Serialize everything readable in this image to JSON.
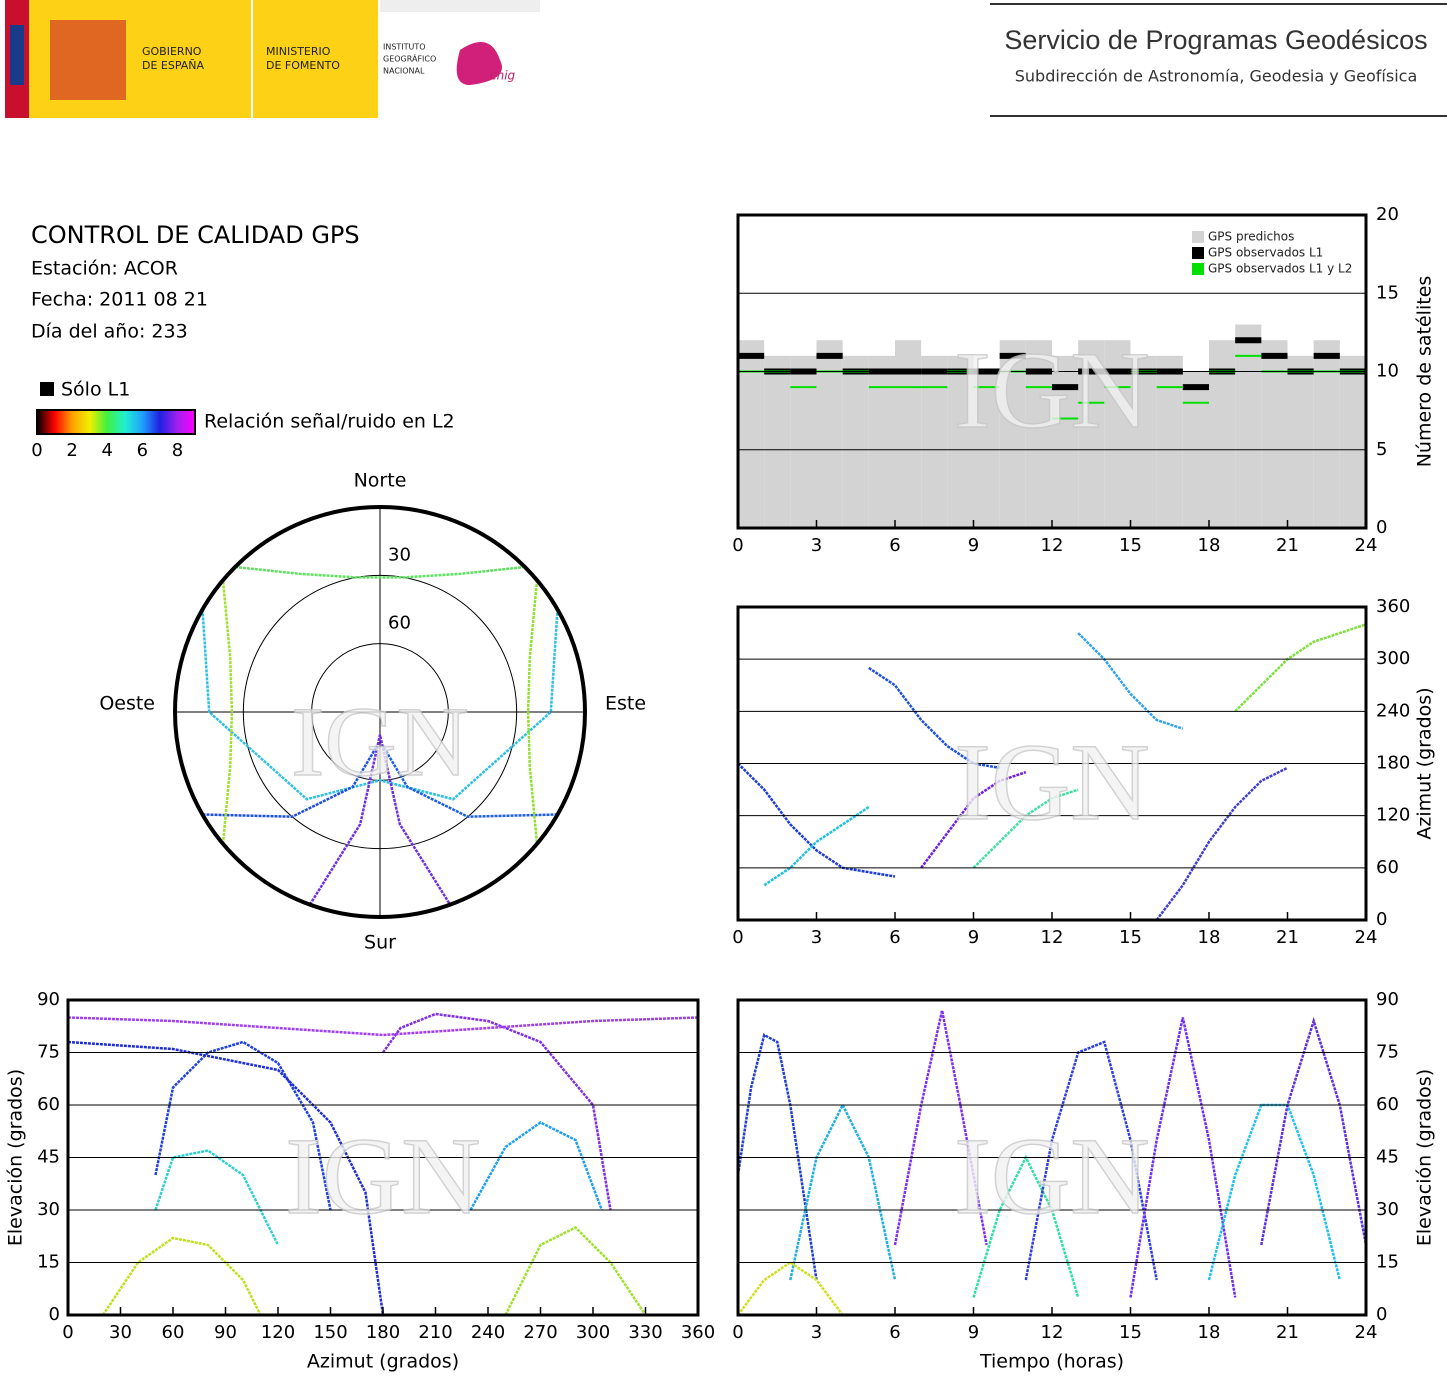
{
  "header": {
    "gov": [
      "GOBIERNO",
      "DE ESPAÑA"
    ],
    "ministry": [
      "MINISTERIO",
      "DE FOMENTO"
    ],
    "institute": [
      "INSTITUTO",
      "GEOGRÁFICO",
      "NACIONAL"
    ],
    "cnig": "cnig",
    "service": "Servicio de Programas Geodésicos",
    "subdirection": "Subdirección de Astronomía, Geodesia y Geofísica"
  },
  "info": {
    "title": "CONTROL DE CALIDAD GPS",
    "station": "Estación: ACOR",
    "date": "Fecha: 2011 08 21",
    "doy": "Día del año: 233",
    "l1_only": "Sólo L1",
    "colorbar": {
      "label": "Relación señal/ruido en L2",
      "lim": [
        0,
        9
      ],
      "ticks": [
        0,
        2,
        4,
        6,
        8
      ],
      "colors": [
        "#000000",
        "#ff0000",
        "#ffa000",
        "#f0f000",
        "#40f040",
        "#20f0d0",
        "#20a0ff",
        "#2020e0",
        "#a020f0",
        "#ff00ff"
      ]
    }
  },
  "watermark": "IGN",
  "chart_data": [
    {
      "type": "step",
      "xlim": [
        0,
        24
      ],
      "xticks": [
        0,
        3,
        6,
        9,
        12,
        15,
        18,
        21,
        24
      ],
      "ylim": [
        0,
        20
      ],
      "yticks": [
        0,
        5,
        10,
        15,
        20
      ],
      "ylabel": "Número de satélites",
      "grid": true,
      "legend": "top-right",
      "x": [
        0,
        1,
        2,
        3,
        4,
        5,
        6,
        7,
        8,
        9,
        10,
        11,
        12,
        13,
        14,
        15,
        16,
        17,
        18,
        19,
        20,
        21,
        22,
        23
      ],
      "series": [
        {
          "name": "GPS predichos",
          "color": "#d3d3d3",
          "values": [
            12,
            11,
            11,
            12,
            11,
            11,
            12,
            11,
            11,
            10,
            12,
            12,
            11,
            12,
            12,
            11,
            11,
            10,
            12,
            13,
            12,
            11,
            12,
            11
          ]
        },
        {
          "name": "GPS observados L1",
          "color": "#000000",
          "values": [
            11,
            10,
            10,
            11,
            10,
            10,
            10,
            10,
            10,
            10,
            11,
            10,
            9,
            10,
            10,
            10,
            10,
            9,
            10,
            12,
            11,
            10,
            11,
            10
          ]
        },
        {
          "name": "GPS observados L1 y L2",
          "color": "#00e000",
          "values": [
            10,
            10,
            9,
            10,
            10,
            9,
            9,
            9,
            10,
            9,
            10,
            9,
            7,
            8,
            9,
            10,
            9,
            8,
            10,
            11,
            10,
            10,
            10,
            10
          ]
        }
      ]
    },
    {
      "type": "line",
      "xlim": [
        0,
        24
      ],
      "xticks": [
        0,
        3,
        6,
        9,
        12,
        15,
        18,
        21,
        24
      ],
      "ylim": [
        0,
        360
      ],
      "yticks": [
        0,
        60,
        120,
        180,
        240,
        300,
        360
      ],
      "ylabel": "Azimut (grados)",
      "grid": true,
      "series": [
        {
          "color": "#1e3cd8",
          "x": [
            0,
            1,
            2,
            3,
            4,
            5,
            6
          ],
          "values": [
            180,
            150,
            110,
            80,
            60,
            55,
            50
          ]
        },
        {
          "color": "#20c0e0",
          "x": [
            1,
            2,
            3,
            4,
            5
          ],
          "values": [
            40,
            60,
            90,
            110,
            130
          ]
        },
        {
          "color": "#2050e0",
          "x": [
            5,
            6,
            7,
            8,
            9,
            10
          ],
          "values": [
            290,
            270,
            230,
            200,
            180,
            175
          ]
        },
        {
          "color": "#40e0a0",
          "x": [
            9,
            10,
            11,
            12,
            13
          ],
          "values": [
            60,
            90,
            120,
            140,
            150
          ]
        },
        {
          "color": "#30a0f0",
          "x": [
            13,
            14,
            15,
            16,
            17
          ],
          "values": [
            330,
            300,
            260,
            230,
            220
          ]
        },
        {
          "color": "#4040d0",
          "x": [
            16,
            17,
            18,
            19,
            20,
            21
          ],
          "values": [
            0,
            40,
            90,
            130,
            160,
            175
          ]
        },
        {
          "color": "#80e040",
          "x": [
            19,
            20,
            21,
            22,
            23,
            24
          ],
          "values": [
            240,
            270,
            300,
            320,
            330,
            340
          ]
        },
        {
          "color": "#7020e0",
          "x": [
            7,
            8,
            9,
            10,
            11
          ],
          "values": [
            60,
            100,
            140,
            160,
            170
          ]
        }
      ]
    },
    {
      "type": "line",
      "xlim": [
        0,
        360
      ],
      "xticks": [
        0,
        30,
        60,
        90,
        120,
        150,
        180,
        210,
        240,
        270,
        300,
        330,
        360
      ],
      "ylim": [
        0,
        90
      ],
      "yticks": [
        0,
        15,
        30,
        45,
        60,
        75,
        90
      ],
      "xlabel": "Azimut (grados)",
      "ylabel": "Elevación (grados)",
      "grid": true,
      "series": [
        {
          "color": "#2040e0",
          "x": [
            50,
            60,
            80,
            100,
            120,
            140,
            150
          ],
          "values": [
            40,
            65,
            75,
            78,
            72,
            55,
            30
          ]
        },
        {
          "color": "#8030e0",
          "x": [
            180,
            190,
            210,
            240,
            270,
            300,
            310
          ],
          "values": [
            75,
            82,
            86,
            84,
            78,
            60,
            30
          ]
        },
        {
          "color": "#a040f0",
          "x": [
            0,
            60,
            120,
            180,
            240,
            300,
            360
          ],
          "values": [
            85,
            84,
            82,
            80,
            82,
            84,
            85
          ]
        },
        {
          "color": "#c0e020",
          "x": [
            20,
            40,
            60,
            80,
            100,
            110
          ],
          "values": [
            0,
            15,
            22,
            20,
            10,
            0
          ]
        },
        {
          "color": "#a0e030",
          "x": [
            250,
            270,
            290,
            310,
            330
          ],
          "values": [
            0,
            20,
            25,
            15,
            0
          ]
        },
        {
          "color": "#30d0d0",
          "x": [
            50,
            60,
            80,
            100,
            120
          ],
          "values": [
            30,
            45,
            47,
            40,
            20
          ]
        },
        {
          "color": "#20a0f0",
          "x": [
            230,
            250,
            270,
            290,
            305
          ],
          "values": [
            30,
            48,
            55,
            50,
            30
          ]
        },
        {
          "color": "#2030d0",
          "x": [
            0,
            60,
            120,
            150,
            170,
            180
          ],
          "values": [
            78,
            76,
            70,
            55,
            35,
            0
          ]
        }
      ]
    },
    {
      "type": "line",
      "xlim": [
        0,
        24
      ],
      "xticks": [
        0,
        3,
        6,
        9,
        12,
        15,
        18,
        21,
        24
      ],
      "ylim": [
        0,
        90
      ],
      "yticks": [
        0,
        15,
        30,
        45,
        60,
        75,
        90
      ],
      "xlabel": "Tiempo (horas)",
      "ylabel": "Elevación (grados)",
      "grid": true,
      "series": [
        {
          "color": "#2040d0",
          "x": [
            0,
            0.5,
            1,
            1.5,
            2,
            2.5,
            3
          ],
          "values": [
            40,
            65,
            80,
            78,
            60,
            35,
            10
          ]
        },
        {
          "color": "#20b0e0",
          "x": [
            2,
            3,
            4,
            5,
            6
          ],
          "values": [
            10,
            45,
            60,
            45,
            10
          ]
        },
        {
          "color": "#8030f0",
          "x": [
            6,
            7,
            7.8,
            8.5,
            9.5
          ],
          "values": [
            20,
            60,
            87,
            60,
            20
          ]
        },
        {
          "color": "#30e0a0",
          "x": [
            9,
            10,
            11,
            12,
            13
          ],
          "values": [
            5,
            30,
            45,
            30,
            5
          ]
        },
        {
          "color": "#3040e0",
          "x": [
            11,
            12,
            13,
            14,
            15,
            16
          ],
          "values": [
            10,
            50,
            75,
            78,
            50,
            10
          ]
        },
        {
          "color": "#7030f0",
          "x": [
            15,
            16,
            17,
            18,
            19
          ],
          "values": [
            5,
            50,
            85,
            50,
            5
          ]
        },
        {
          "color": "#20c0f0",
          "x": [
            18,
            19,
            20,
            21,
            22,
            23
          ],
          "values": [
            10,
            40,
            60,
            60,
            40,
            10
          ]
        },
        {
          "color": "#6030e0",
          "x": [
            20,
            21,
            22,
            23,
            24
          ],
          "values": [
            20,
            60,
            84,
            60,
            20
          ]
        },
        {
          "color": "#d0e020",
          "x": [
            0,
            1,
            2,
            3,
            4
          ],
          "values": [
            0,
            10,
            15,
            10,
            0
          ]
        }
      ]
    },
    {
      "type": "polar",
      "rlim": [
        90,
        0
      ],
      "rticks": [
        30,
        60
      ],
      "directions": [
        "Norte",
        "Este",
        "Sur",
        "Oeste"
      ],
      "series": [
        {
          "color": "#60e060",
          "x": [
            315,
            330,
            350,
            10,
            30,
            45
          ],
          "values": [
            0,
            20,
            30,
            30,
            20,
            0
          ]
        },
        {
          "color": "#30c0e0",
          "x": [
            300,
            270,
            220,
            180,
            140,
            90,
            60
          ],
          "values": [
            0,
            15,
            40,
            60,
            40,
            15,
            0
          ]
        },
        {
          "color": "#7030e0",
          "x": [
            200,
            190,
            180,
            170,
            160
          ],
          "values": [
            0,
            40,
            80,
            40,
            0
          ]
        },
        {
          "color": "#2050e0",
          "x": [
            240,
            220,
            200,
            185
          ],
          "values": [
            0,
            30,
            55,
            75
          ]
        },
        {
          "color": "#2060e0",
          "x": [
            120,
            140,
            160,
            175
          ],
          "values": [
            0,
            30,
            55,
            75
          ]
        },
        {
          "color": "#90e030",
          "x": [
            50,
            70,
            90,
            110,
            130
          ],
          "values": [
            0,
            20,
            25,
            20,
            0
          ]
        },
        {
          "color": "#a0e030",
          "x": [
            230,
            250,
            270,
            290,
            310
          ],
          "values": [
            0,
            20,
            25,
            20,
            0
          ]
        }
      ]
    }
  ]
}
